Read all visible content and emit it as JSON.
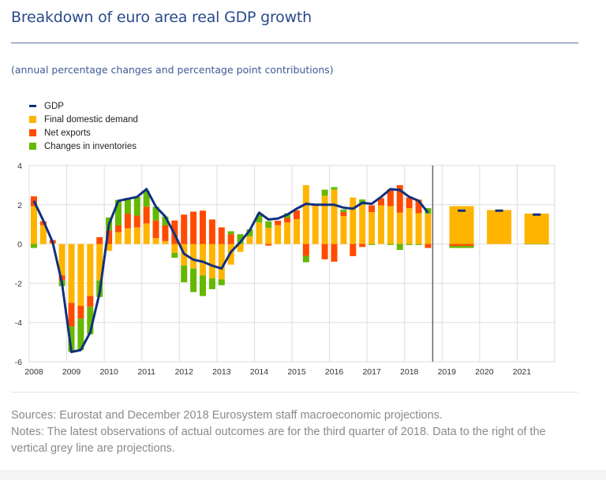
{
  "header": {
    "title": "Breakdown of euro area real GDP growth",
    "subtitle": "(annual percentage changes and percentage point contributions)"
  },
  "legend": [
    {
      "label": "GDP",
      "color": "#10307f",
      "kind": "line"
    },
    {
      "label": "Final domestic demand",
      "color": "#ffb400",
      "kind": "bar"
    },
    {
      "label": "Net exports",
      "color": "#ff4b00",
      "kind": "bar"
    },
    {
      "label": "Changes in inventories",
      "color": "#65b800",
      "kind": "bar"
    }
  ],
  "chart_data": {
    "type": "bar",
    "stacked": true,
    "title": "Breakdown of euro area real GDP growth",
    "subtitle": "(annual percentage changes and percentage point contributions)",
    "xlabel": "",
    "ylabel": "",
    "ylim": [
      -6,
      4
    ],
    "yticks": [
      -6,
      -4,
      -2,
      0,
      2,
      4
    ],
    "xlim": [
      2008,
      2022
    ],
    "xticks": [
      "2008",
      "2009",
      "2010",
      "2011",
      "2012",
      "2013",
      "2014",
      "2015",
      "2016",
      "2017",
      "2018",
      "2019",
      "2020",
      "2021"
    ],
    "grid": true,
    "legend_position": "top-left",
    "projection_start": "after 2018Q3",
    "colors": {
      "gdp": "#10307f",
      "fdd": "#ffb400",
      "nx": "#ff4b00",
      "inv": "#65b800",
      "projection_line": "#666666"
    },
    "quarterly": {
      "categories": [
        "2008Q1",
        "2008Q2",
        "2008Q3",
        "2008Q4",
        "2009Q1",
        "2009Q2",
        "2009Q3",
        "2009Q4",
        "2010Q1",
        "2010Q2",
        "2010Q3",
        "2010Q4",
        "2011Q1",
        "2011Q2",
        "2011Q3",
        "2011Q4",
        "2012Q1",
        "2012Q2",
        "2012Q3",
        "2012Q4",
        "2013Q1",
        "2013Q2",
        "2013Q3",
        "2013Q4",
        "2014Q1",
        "2014Q2",
        "2014Q3",
        "2014Q4",
        "2015Q1",
        "2015Q2",
        "2015Q3",
        "2015Q4",
        "2016Q1",
        "2016Q2",
        "2016Q3",
        "2016Q4",
        "2017Q1",
        "2017Q2",
        "2017Q3",
        "2017Q4",
        "2018Q1",
        "2018Q2",
        "2018Q3"
      ],
      "series": [
        {
          "name": "Final domestic demand",
          "values": [
            1.93,
            0.96,
            0.05,
            -1.6,
            -3.0,
            -3.15,
            -2.65,
            -1.85,
            -0.35,
            0.6,
            0.8,
            0.85,
            1.05,
            0.3,
            0.15,
            -0.45,
            -1.1,
            -1.25,
            -1.6,
            -1.75,
            -1.8,
            -1.05,
            -0.4,
            0.4,
            1.1,
            0.83,
            0.96,
            1.1,
            1.27,
            3.0,
            2.0,
            2.46,
            2.77,
            1.43,
            2.37,
            2.0,
            1.63,
            1.97,
            1.93,
            1.6,
            1.83,
            1.57,
            1.54
          ]
        },
        {
          "name": "Net exports",
          "values": [
            0.5,
            0.2,
            0.15,
            -0.25,
            -1.2,
            -0.65,
            -0.55,
            0.35,
            0.7,
            0.35,
            0.75,
            0.6,
            0.85,
            0.9,
            0.8,
            1.2,
            1.5,
            1.65,
            1.7,
            1.25,
            0.85,
            0.5,
            0,
            0,
            0,
            -0.08,
            0.23,
            0.23,
            0.45,
            -0.6,
            0,
            -0.78,
            -0.9,
            0.2,
            -0.62,
            -0.15,
            0.34,
            0.37,
            0.87,
            1.4,
            0.54,
            0.69,
            -0.2
          ]
        },
        {
          "name": "Changes in inventories",
          "values": [
            -0.2,
            0,
            0,
            -0.3,
            -1.3,
            -1.6,
            -1.4,
            -0.85,
            0.65,
            1.3,
            0.8,
            0.95,
            0.8,
            0.7,
            0.45,
            -0.25,
            -0.85,
            -1.2,
            -1.05,
            -0.55,
            -0.3,
            0.15,
            0.5,
            0.35,
            0.4,
            0.33,
            0,
            0.24,
            0,
            -0.33,
            0,
            0.31,
            0.13,
            0.13,
            0,
            0.27,
            -0.05,
            0,
            -0.05,
            -0.3,
            -0.05,
            -0.05,
            0.29
          ]
        },
        {
          "name": "GDP",
          "values": [
            2.2,
            1.2,
            0.1,
            -2.0,
            -5.5,
            -5.4,
            -4.5,
            -2.5,
            1.0,
            2.2,
            2.3,
            2.4,
            2.8,
            1.9,
            1.4,
            0.5,
            -0.5,
            -0.8,
            -0.9,
            -1.1,
            -1.25,
            -0.4,
            0.1,
            0.7,
            1.6,
            1.25,
            1.3,
            1.5,
            1.8,
            2.05,
            2.0,
            2.0,
            2.0,
            1.85,
            1.8,
            2.1,
            2.05,
            2.4,
            2.8,
            2.75,
            2.4,
            2.2,
            1.6
          ]
        }
      ]
    },
    "annual_projections": {
      "categories": [
        "2019",
        "2020",
        "2021"
      ],
      "series": [
        {
          "name": "Final domestic demand",
          "values": [
            1.93,
            1.73,
            1.55
          ]
        },
        {
          "name": "Net exports",
          "values": [
            -0.1,
            0,
            0
          ]
        },
        {
          "name": "Changes in inventories",
          "values": [
            -0.1,
            0,
            -0.02
          ]
        },
        {
          "name": "GDP",
          "values": [
            1.7,
            1.7,
            1.5
          ]
        }
      ]
    }
  },
  "footer": {
    "sources": "Sources: Eurostat and December 2018 Eurosystem staff macroeconomic projections.",
    "notes": "Notes: The latest observations of actual outcomes are for the third quarter of 2018. Data to the right of the vertical grey line are projections."
  }
}
